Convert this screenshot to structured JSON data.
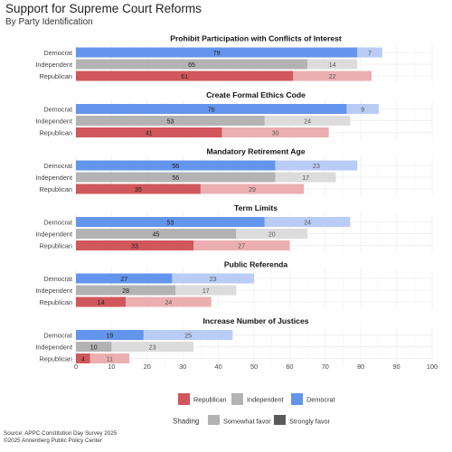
{
  "title": "Support for Supreme Court Reforms",
  "subtitle": "By Party Identification",
  "source_lines": [
    "Source: APPC Constitution Day Survey 2025",
    "©2025 Annenberg Public Policy Center"
  ],
  "colors": {
    "Democrat": "#6495ED",
    "Independent": "#B3B3B3",
    "Republican": "#D0575B",
    "Democrat_light": "#B8CCF6",
    "Independent_light": "#DCDCDC",
    "Republican_light": "#EBAFB1",
    "Somewhat": "#B3B3B3",
    "Strongly": "#5A5A5A"
  },
  "legend": {
    "party_items": [
      "Republican",
      "Independent",
      "Democrat"
    ],
    "shading_title": "Shading",
    "shading_items": [
      "Somewhat favor",
      "Strongly favor"
    ]
  },
  "chart_data": {
    "type": "bar",
    "orientation": "horizontal",
    "stacked": true,
    "xlim": [
      0,
      100
    ],
    "x_ticks": [
      0,
      10,
      20,
      30,
      40,
      50,
      60,
      70,
      80,
      90,
      100
    ],
    "grid": true,
    "legend_position": "bottom",
    "categories": [
      "Democrat",
      "Independent",
      "Republican"
    ],
    "panels": [
      {
        "title": "Prohibit Participation with Conflicts of Interest",
        "rows": [
          {
            "party": "Democrat",
            "strongly": 79,
            "somewhat": 7
          },
          {
            "party": "Independent",
            "strongly": 65,
            "somewhat": 14
          },
          {
            "party": "Republican",
            "strongly": 61,
            "somewhat": 22
          }
        ]
      },
      {
        "title": "Create Formal Ethics Code",
        "rows": [
          {
            "party": "Democrat",
            "strongly": 76,
            "somewhat": 9
          },
          {
            "party": "Independent",
            "strongly": 53,
            "somewhat": 24
          },
          {
            "party": "Republican",
            "strongly": 41,
            "somewhat": 30
          }
        ]
      },
      {
        "title": "Mandatory Retirement Age",
        "rows": [
          {
            "party": "Democrat",
            "strongly": 56,
            "somewhat": 23
          },
          {
            "party": "Independent",
            "strongly": 56,
            "somewhat": 17
          },
          {
            "party": "Republican",
            "strongly": 35,
            "somewhat": 29
          }
        ]
      },
      {
        "title": "Term Limits",
        "rows": [
          {
            "party": "Democrat",
            "strongly": 53,
            "somewhat": 24
          },
          {
            "party": "Independent",
            "strongly": 45,
            "somewhat": 20
          },
          {
            "party": "Republican",
            "strongly": 33,
            "somewhat": 27
          }
        ]
      },
      {
        "title": "Public Referenda",
        "rows": [
          {
            "party": "Democrat",
            "strongly": 27,
            "somewhat": 23
          },
          {
            "party": "Independent",
            "strongly": 28,
            "somewhat": 17
          },
          {
            "party": "Republican",
            "strongly": 14,
            "somewhat": 24
          }
        ]
      },
      {
        "title": "Increase Number of Justices",
        "rows": [
          {
            "party": "Democrat",
            "strongly": 19,
            "somewhat": 25
          },
          {
            "party": "Independent",
            "strongly": 10,
            "somewhat": 23
          },
          {
            "party": "Republican",
            "strongly": 4,
            "somewhat": 11
          }
        ]
      }
    ]
  }
}
